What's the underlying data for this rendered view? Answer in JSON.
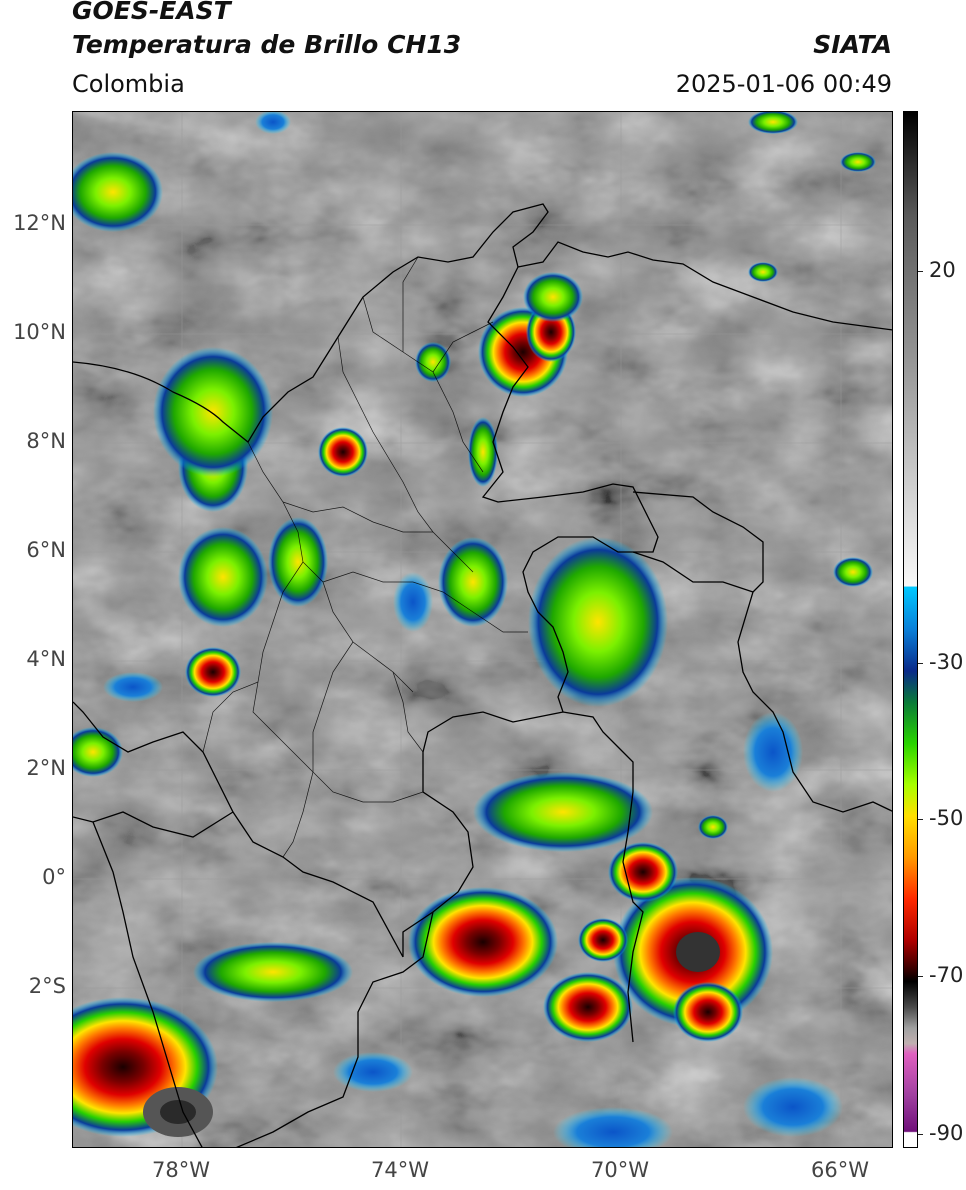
{
  "header": {
    "satellite": "GOES-EAST",
    "product": "Temperatura de Brillo CH13",
    "brand": "SIATA",
    "region": "Colombia",
    "datetime": "2025-01-06 00:49"
  },
  "map": {
    "lat_labels": [
      "12°N",
      "10°N",
      "8°N",
      "6°N",
      "4°N",
      "2°N",
      "0°",
      "2°S"
    ],
    "lon_labels": [
      "78°W",
      "74°W",
      "70°W",
      "66°W"
    ],
    "extent": {
      "lon_min": -80,
      "lon_max": -65,
      "lat_min": -4.8,
      "lat_max": 14.2
    }
  },
  "colorbar": {
    "labels": [
      "20",
      "-30",
      "-50",
      "-70",
      "-90"
    ],
    "range": [
      -92,
      36
    ],
    "scheme": [
      "black",
      "gray",
      "white",
      "cyan",
      "dark-blue",
      "green",
      "yellow",
      "orange",
      "red",
      "dark-red",
      "black",
      "gray",
      "pink",
      "purple"
    ]
  }
}
